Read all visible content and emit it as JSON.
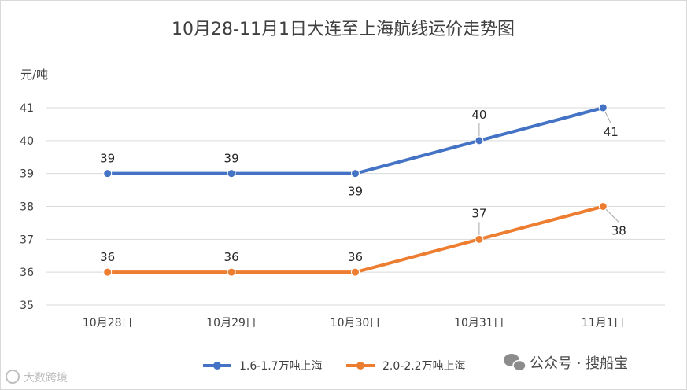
{
  "chart_data": {
    "type": "line",
    "title": "10月28-11月1日大连至上海航线运价走势图",
    "ylabel": "元/吨",
    "xlabel": "",
    "categories": [
      "10月28日",
      "10月29日",
      "10月30日",
      "10月31日",
      "11月1日"
    ],
    "ylim": [
      35,
      41
    ],
    "yticks": [
      35,
      36,
      37,
      38,
      39,
      40,
      41
    ],
    "grid": true,
    "legend_position": "bottom",
    "series": [
      {
        "name": "1.6-1.7万吨上海",
        "values": [
          39,
          39,
          39,
          40,
          41
        ],
        "color": "#4472C4"
      },
      {
        "name": "2.0-2.2万吨上海",
        "values": [
          36,
          36,
          36,
          37,
          38
        ],
        "color": "#ED7D31"
      }
    ]
  },
  "watermark": {
    "account": "公众号 · 搜船宝",
    "left_mark": "大数跨境"
  }
}
